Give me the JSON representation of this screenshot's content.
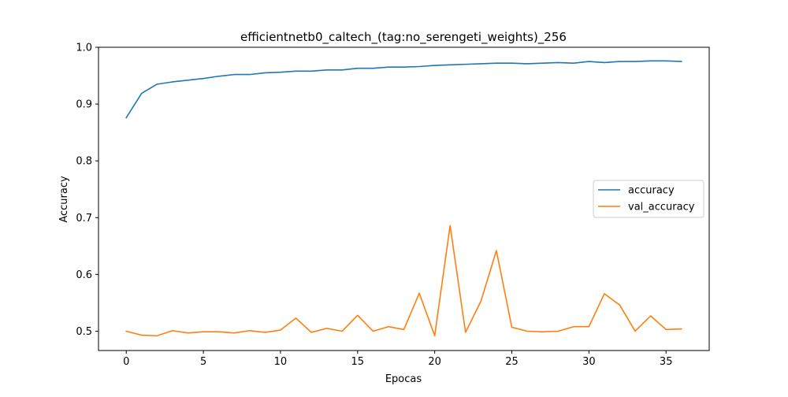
{
  "chart_data": {
    "type": "line",
    "title": "efficientnetb0_caltech_(tag:no_serengeti_weights)_256",
    "xlabel": "Epocas",
    "ylabel": "Accuracy",
    "xlim": [
      -1.8,
      37.8
    ],
    "ylim": [
      0.466,
      1.0
    ],
    "xticks": [
      0,
      5,
      10,
      15,
      20,
      25,
      30,
      35
    ],
    "yticks": [
      0.5,
      0.6,
      0.7,
      0.8,
      0.9,
      1.0
    ],
    "ytick_labels": [
      "0.5",
      "0.6",
      "0.7",
      "0.8",
      "0.9",
      "1.0"
    ],
    "grid": false,
    "legend_position": "center-right",
    "x": [
      0,
      1,
      2,
      3,
      4,
      5,
      6,
      7,
      8,
      9,
      10,
      11,
      12,
      13,
      14,
      15,
      16,
      17,
      18,
      19,
      20,
      21,
      22,
      23,
      24,
      25,
      26,
      27,
      28,
      29,
      30,
      31,
      32,
      33,
      34,
      35,
      36
    ],
    "series": [
      {
        "name": "accuracy",
        "color": "#1f77b4",
        "values": [
          0.876,
          0.919,
          0.935,
          0.939,
          0.942,
          0.945,
          0.949,
          0.952,
          0.952,
          0.955,
          0.956,
          0.958,
          0.958,
          0.96,
          0.96,
          0.963,
          0.963,
          0.965,
          0.965,
          0.966,
          0.968,
          0.969,
          0.97,
          0.971,
          0.972,
          0.972,
          0.971,
          0.972,
          0.973,
          0.972,
          0.975,
          0.973,
          0.975,
          0.975,
          0.976,
          0.976,
          0.975
        ]
      },
      {
        "name": "val_accuracy",
        "color": "#ff7f0e",
        "values": [
          0.5,
          0.493,
          0.492,
          0.501,
          0.497,
          0.499,
          0.499,
          0.497,
          0.501,
          0.498,
          0.502,
          0.523,
          0.498,
          0.505,
          0.5,
          0.528,
          0.5,
          0.508,
          0.503,
          0.567,
          0.492,
          0.686,
          0.498,
          0.553,
          0.642,
          0.507,
          0.5,
          0.499,
          0.5,
          0.508,
          0.508,
          0.566,
          0.546,
          0.5,
          0.527,
          0.503,
          0.504
        ]
      }
    ]
  }
}
